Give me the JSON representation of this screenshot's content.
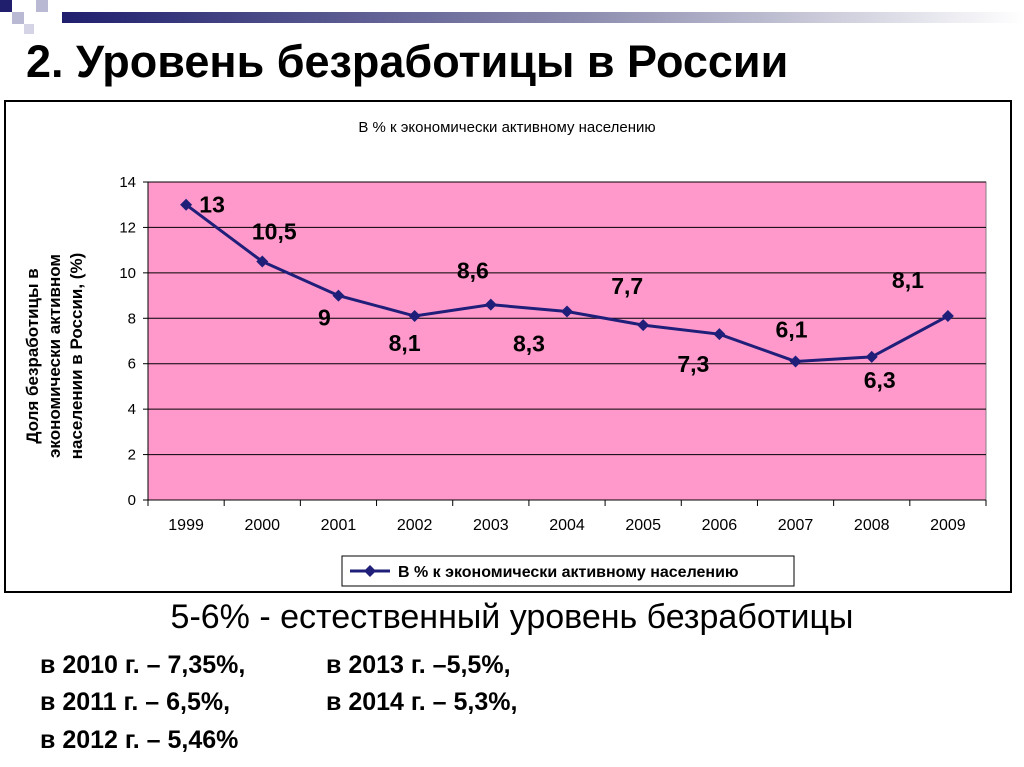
{
  "slide": {
    "title": "2. Уровень безработицы в России",
    "natural_rate": "5-6% - естественный уровень безработицы",
    "notes": [
      "в 2010 г.  – 7,35%,",
      "в 2011 г. – 6,5%,",
      "в 2012 г. – 5,46%",
      "в 2013 г.  –5,5%,",
      "в 2014 г.  – 5,3%,"
    ]
  },
  "colors": {
    "plot_bg": "#ff99cc",
    "line": "#1f1f7a",
    "grid": "#000000",
    "deco_dark": "#1f1f6e"
  },
  "chart_data": {
    "type": "line",
    "title": "В % к экономически активному населению",
    "ylabel": "Доля безработицы в экономически активном населении в России, (%)",
    "xlabel": "",
    "categories": [
      "1999",
      "2000",
      "2001",
      "2002",
      "2003",
      "2004",
      "2005",
      "2006",
      "2007",
      "2008",
      "2009"
    ],
    "series": [
      {
        "name": "В % к экономически активному населению",
        "values": [
          13,
          10.5,
          9,
          8.1,
          8.6,
          8.3,
          7.7,
          7.3,
          6.1,
          6.3,
          8.1
        ],
        "labels": [
          "13",
          "10,5",
          "9",
          "8,1",
          "8,6",
          "8,3",
          "7,7",
          "7,3",
          "6,1",
          "6,3",
          "8,1"
        ]
      }
    ],
    "ylim": [
      0,
      14
    ],
    "yticks": [
      0,
      2,
      4,
      6,
      8,
      10,
      12,
      14
    ],
    "grid": true,
    "legend": "bottom"
  }
}
